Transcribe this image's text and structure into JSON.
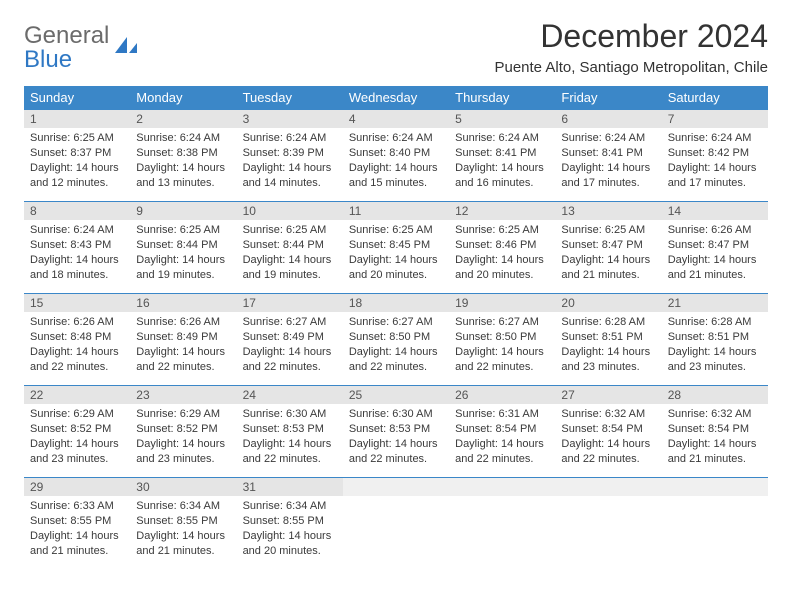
{
  "logo": {
    "line1": "General",
    "line2": "Blue"
  },
  "title": "December 2024",
  "subtitle": "Puente Alto, Santiago Metropolitan, Chile",
  "colors": {
    "header_bg": "#3b87c8",
    "header_fg": "#ffffff",
    "daynum_bg": "#e5e5e5",
    "row_border": "#3b87c8",
    "text": "#3a3a3a",
    "logo_gray": "#6b6b6b",
    "logo_blue": "#2f78c4"
  },
  "weekdays": [
    "Sunday",
    "Monday",
    "Tuesday",
    "Wednesday",
    "Thursday",
    "Friday",
    "Saturday"
  ],
  "weeks": [
    [
      {
        "n": "1",
        "sr": "6:25 AM",
        "ss": "8:37 PM",
        "dl": "14 hours and 12 minutes."
      },
      {
        "n": "2",
        "sr": "6:24 AM",
        "ss": "8:38 PM",
        "dl": "14 hours and 13 minutes."
      },
      {
        "n": "3",
        "sr": "6:24 AM",
        "ss": "8:39 PM",
        "dl": "14 hours and 14 minutes."
      },
      {
        "n": "4",
        "sr": "6:24 AM",
        "ss": "8:40 PM",
        "dl": "14 hours and 15 minutes."
      },
      {
        "n": "5",
        "sr": "6:24 AM",
        "ss": "8:41 PM",
        "dl": "14 hours and 16 minutes."
      },
      {
        "n": "6",
        "sr": "6:24 AM",
        "ss": "8:41 PM",
        "dl": "14 hours and 17 minutes."
      },
      {
        "n": "7",
        "sr": "6:24 AM",
        "ss": "8:42 PM",
        "dl": "14 hours and 17 minutes."
      }
    ],
    [
      {
        "n": "8",
        "sr": "6:24 AM",
        "ss": "8:43 PM",
        "dl": "14 hours and 18 minutes."
      },
      {
        "n": "9",
        "sr": "6:25 AM",
        "ss": "8:44 PM",
        "dl": "14 hours and 19 minutes."
      },
      {
        "n": "10",
        "sr": "6:25 AM",
        "ss": "8:44 PM",
        "dl": "14 hours and 19 minutes."
      },
      {
        "n": "11",
        "sr": "6:25 AM",
        "ss": "8:45 PM",
        "dl": "14 hours and 20 minutes."
      },
      {
        "n": "12",
        "sr": "6:25 AM",
        "ss": "8:46 PM",
        "dl": "14 hours and 20 minutes."
      },
      {
        "n": "13",
        "sr": "6:25 AM",
        "ss": "8:47 PM",
        "dl": "14 hours and 21 minutes."
      },
      {
        "n": "14",
        "sr": "6:26 AM",
        "ss": "8:47 PM",
        "dl": "14 hours and 21 minutes."
      }
    ],
    [
      {
        "n": "15",
        "sr": "6:26 AM",
        "ss": "8:48 PM",
        "dl": "14 hours and 22 minutes."
      },
      {
        "n": "16",
        "sr": "6:26 AM",
        "ss": "8:49 PM",
        "dl": "14 hours and 22 minutes."
      },
      {
        "n": "17",
        "sr": "6:27 AM",
        "ss": "8:49 PM",
        "dl": "14 hours and 22 minutes."
      },
      {
        "n": "18",
        "sr": "6:27 AM",
        "ss": "8:50 PM",
        "dl": "14 hours and 22 minutes."
      },
      {
        "n": "19",
        "sr": "6:27 AM",
        "ss": "8:50 PM",
        "dl": "14 hours and 22 minutes."
      },
      {
        "n": "20",
        "sr": "6:28 AM",
        "ss": "8:51 PM",
        "dl": "14 hours and 23 minutes."
      },
      {
        "n": "21",
        "sr": "6:28 AM",
        "ss": "8:51 PM",
        "dl": "14 hours and 23 minutes."
      }
    ],
    [
      {
        "n": "22",
        "sr": "6:29 AM",
        "ss": "8:52 PM",
        "dl": "14 hours and 23 minutes."
      },
      {
        "n": "23",
        "sr": "6:29 AM",
        "ss": "8:52 PM",
        "dl": "14 hours and 23 minutes."
      },
      {
        "n": "24",
        "sr": "6:30 AM",
        "ss": "8:53 PM",
        "dl": "14 hours and 22 minutes."
      },
      {
        "n": "25",
        "sr": "6:30 AM",
        "ss": "8:53 PM",
        "dl": "14 hours and 22 minutes."
      },
      {
        "n": "26",
        "sr": "6:31 AM",
        "ss": "8:54 PM",
        "dl": "14 hours and 22 minutes."
      },
      {
        "n": "27",
        "sr": "6:32 AM",
        "ss": "8:54 PM",
        "dl": "14 hours and 22 minutes."
      },
      {
        "n": "28",
        "sr": "6:32 AM",
        "ss": "8:54 PM",
        "dl": "14 hours and 21 minutes."
      }
    ],
    [
      {
        "n": "29",
        "sr": "6:33 AM",
        "ss": "8:55 PM",
        "dl": "14 hours and 21 minutes."
      },
      {
        "n": "30",
        "sr": "6:34 AM",
        "ss": "8:55 PM",
        "dl": "14 hours and 21 minutes."
      },
      {
        "n": "31",
        "sr": "6:34 AM",
        "ss": "8:55 PM",
        "dl": "14 hours and 20 minutes."
      },
      {
        "empty": true
      },
      {
        "empty": true
      },
      {
        "empty": true
      },
      {
        "empty": true
      }
    ]
  ],
  "labels": {
    "sunrise": "Sunrise:",
    "sunset": "Sunset:",
    "daylight": "Daylight:"
  }
}
